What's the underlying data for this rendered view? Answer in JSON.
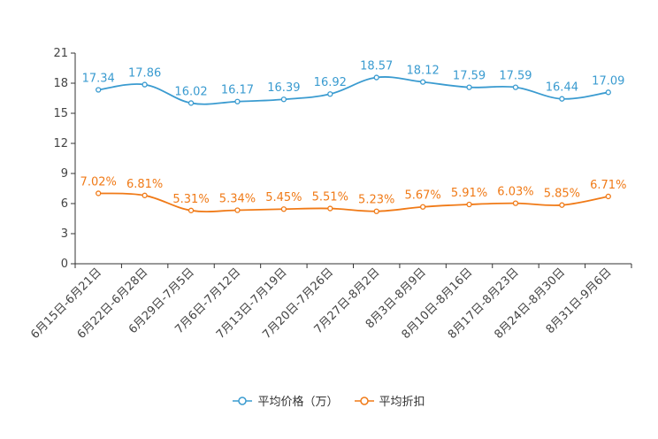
{
  "chart_data": {
    "type": "line",
    "categories": [
      "6月15日-6月21日",
      "6月22日-6月28日",
      "6月29日-7月5日",
      "7月6日-7月12日",
      "7月13日-7月19日",
      "7月20日-7月26日",
      "7月27日-8月2日",
      "8月3日-8月9日",
      "8月10日-8月16日",
      "8月17日-8月23日",
      "8月24日-8月30日",
      "8月31日-9月6日"
    ],
    "series": [
      {
        "name": "平均价格（万）",
        "color": "#3a9bd0",
        "values": [
          17.34,
          17.86,
          16.02,
          16.17,
          16.39,
          16.92,
          18.57,
          18.12,
          17.59,
          17.59,
          16.44,
          17.09
        ],
        "labels": [
          "17.34",
          "17.86",
          "16.02",
          "16.17",
          "16.39",
          "16.92",
          "18.57",
          "18.12",
          "17.59",
          "17.59",
          "16.44",
          "17.09"
        ]
      },
      {
        "name": "平均折扣",
        "color": "#f07a17",
        "values": [
          7.02,
          6.81,
          5.31,
          5.34,
          5.45,
          5.51,
          5.23,
          5.67,
          5.91,
          6.03,
          5.85,
          6.71
        ],
        "labels": [
          "7.02%",
          "6.81%",
          "5.31%",
          "5.34%",
          "5.45%",
          "5.51%",
          "5.23%",
          "5.67%",
          "5.91%",
          "6.03%",
          "5.85%",
          "6.71%"
        ]
      }
    ],
    "ylim": [
      0,
      21
    ],
    "yticks": [
      0,
      3,
      6,
      9,
      12,
      15,
      18,
      21
    ],
    "ytick_labels": [
      "0",
      "3",
      "6",
      "9",
      "12",
      "15",
      "18",
      "21"
    ],
    "xlabel": "",
    "ylabel": "",
    "title": "",
    "grid": false,
    "legend_position": "bottom-center"
  }
}
